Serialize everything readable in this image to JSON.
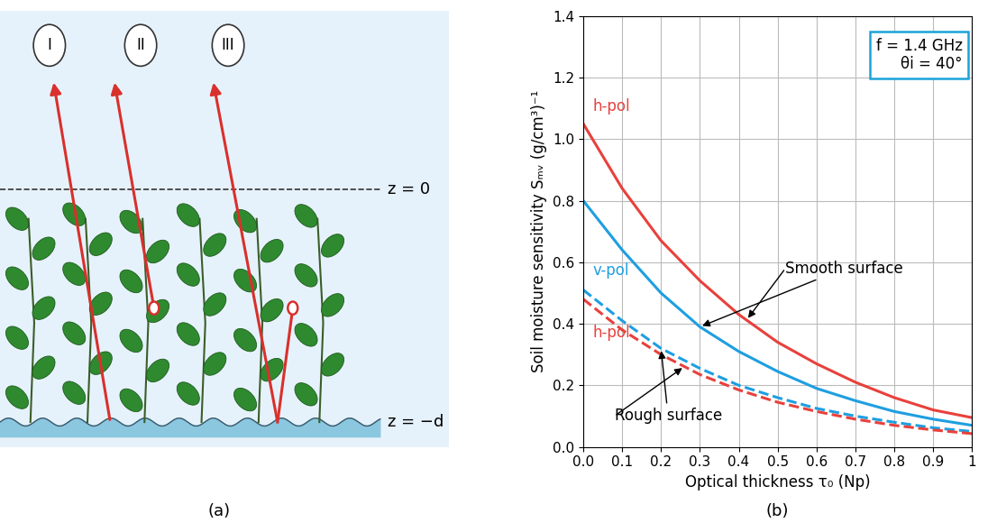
{
  "diagram": {
    "panel_label": "(a)",
    "rays": [
      "I",
      "II",
      "III"
    ],
    "levels": [
      "z = 0",
      "z = −d"
    ]
  },
  "chart_data": {
    "type": "line",
    "panel_label": "(b)",
    "x_label": "Optical thickness τ₀ (Np)",
    "y_label": "Soil moisture sensitivity Sₘᵥ (g/cm³)⁻¹",
    "info_box": [
      "f = 1.4 GHz",
      "θi = 40°"
    ],
    "annotations": [
      "Smooth surface",
      "Rough surface"
    ],
    "x": [
      0.0,
      0.1,
      0.2,
      0.3,
      0.4,
      0.5,
      0.6,
      0.7,
      0.8,
      0.9,
      1.0
    ],
    "series": [
      {
        "name": "h-pol",
        "color": "#e8413c",
        "line_style": "solid",
        "values": [
          1.05,
          0.84,
          0.67,
          0.54,
          0.43,
          0.34,
          0.27,
          0.21,
          0.16,
          0.12,
          0.095
        ]
      },
      {
        "name": "v-pol",
        "color": "#1e9fe0",
        "line_style": "solid",
        "values": [
          0.8,
          0.64,
          0.5,
          0.39,
          0.31,
          0.245,
          0.19,
          0.15,
          0.115,
          0.09,
          0.07
        ]
      },
      {
        "name": "v-pol",
        "color": "#1e9fe0",
        "line_style": "dashed",
        "values": [
          0.51,
          0.41,
          0.32,
          0.255,
          0.2,
          0.16,
          0.125,
          0.1,
          0.08,
          0.062,
          0.05
        ]
      },
      {
        "name": "h-pol",
        "color": "#e8413c",
        "line_style": "dashed",
        "values": [
          0.48,
          0.38,
          0.3,
          0.235,
          0.185,
          0.145,
          0.115,
          0.09,
          0.07,
          0.055,
          0.043
        ]
      }
    ],
    "xlim": [
      0,
      1
    ],
    "ylim": [
      0,
      1.4
    ],
    "xticks": [
      {
        "value": 0,
        "label": "0.0"
      },
      0.1,
      0.2,
      0.3,
      0.4,
      0.5,
      0.6,
      0.7,
      0.8,
      0.9,
      1
    ],
    "yticks": [
      {
        "value": 0,
        "label": "0.0"
      },
      0.2,
      0.4,
      0.6,
      0.8,
      {
        "value": 1,
        "label": "1.0"
      },
      1.2,
      1.4
    ],
    "grid": true
  }
}
